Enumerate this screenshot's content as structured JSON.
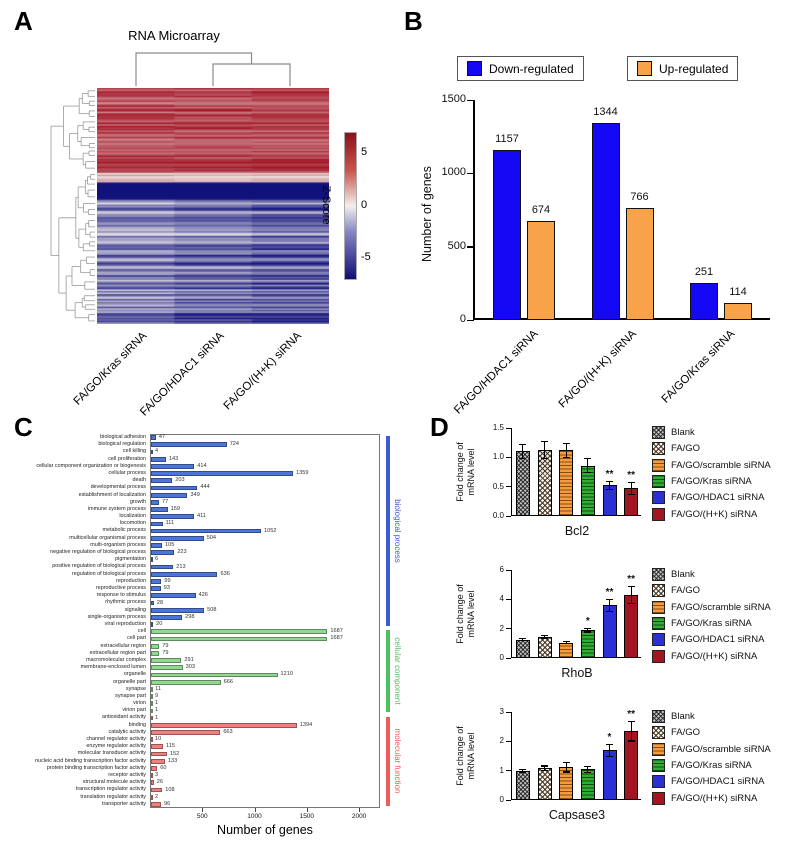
{
  "figure": {
    "panel_labels": {
      "a": "A",
      "b": "B",
      "c": "C",
      "d": "D"
    }
  },
  "panel_a": {
    "title": "RNA Microarray",
    "colorbar_title": "Z-Score",
    "colorbar_ticks": [
      "5",
      "0",
      "-5"
    ],
    "column_labels": [
      "FA/GO/Kras siRNA",
      "FA/GO/HDAC1 siRNA",
      "FA/GO/(H+K) siRNA"
    ],
    "heatmap_colors": {
      "high": "#a31525",
      "mid": "#f2efec",
      "low": "#12127c"
    }
  },
  "panel_d": {
    "ylabel_line1": "Fold change of",
    "ylabel_line2": "mRNA level",
    "legend": [
      {
        "label": "Blank",
        "pattern": "checker-gray"
      },
      {
        "label": "FA/GO",
        "pattern": "crosshatch-tan"
      },
      {
        "label": "FA/GO/scramble siRNA",
        "pattern": "hlines-orange"
      },
      {
        "label": "FA/GO/Kras siRNA",
        "pattern": "hlines-green"
      },
      {
        "label": "FA/GO/HDAC1 siRNA",
        "pattern": "solid-blue"
      },
      {
        "label": "FA/GO/(H+K) siRNA",
        "pattern": "solid-darkred"
      }
    ]
  },
  "chart_data": [
    {
      "id": "gene-counts",
      "type": "bar",
      "title": "",
      "ylabel": "Number of genes",
      "ylim": [
        0,
        1500
      ],
      "yticks": [
        0,
        500,
        1000,
        1500
      ],
      "categories": [
        "FA/GO/HDAC1 siRNA",
        "FA/GO/(H+K) siRNA",
        "FA/GO/Kras siRNA"
      ],
      "series": [
        {
          "name": "Down-regulated",
          "color": "#1508f5",
          "values": [
            1157,
            1344,
            251
          ]
        },
        {
          "name": "Up-regulated",
          "color": "#f8a24a",
          "values": [
            674,
            766,
            114
          ]
        }
      ],
      "legend_position": "top"
    },
    {
      "id": "go-classification",
      "type": "bar-horizontal",
      "xlabel": "Number of genes",
      "xlim": [
        0,
        2200
      ],
      "xticks": [
        500,
        1000,
        1500,
        2000
      ],
      "groups": [
        {
          "name": "biological process",
          "color": "#4d74d8",
          "bracket_color": "#3b5bd7",
          "items": [
            [
              "biological adhesion",
              47
            ],
            [
              "biological regulation",
              724
            ],
            [
              "cell killing",
              4
            ],
            [
              "cell proliferation",
              143
            ],
            [
              "cellular component organization or biogenesis",
              414
            ],
            [
              "cellular process",
              1359
            ],
            [
              "death",
              203
            ],
            [
              "developmental process",
              444
            ],
            [
              "establishment of localization",
              349
            ],
            [
              "growth",
              77
            ],
            [
              "immune system process",
              159
            ],
            [
              "localization",
              411
            ],
            [
              "locomotion",
              111
            ],
            [
              "metabolic process",
              1052
            ],
            [
              "multicellular organismal process",
              504
            ],
            [
              "multi-organism process",
              105
            ],
            [
              "negative regulation of biological process",
              223
            ],
            [
              "pigmentation",
              6
            ],
            [
              "positive regulation of biological process",
              213
            ],
            [
              "regulation of biological process",
              636
            ],
            [
              "reproduction",
              99
            ],
            [
              "reproductive process",
              93
            ],
            [
              "response to stimulus",
              426
            ],
            [
              "rhythmic process",
              28
            ],
            [
              "signaling",
              508
            ],
            [
              "single-organism process",
              298
            ],
            [
              "viral reproduction",
              20
            ]
          ]
        },
        {
          "name": "cellular component",
          "color": "#93d793",
          "bracket_color": "#4fbf5f",
          "items": [
            [
              "cell",
              1687
            ],
            [
              "cell part",
              1687
            ],
            [
              "extracellular region",
              79
            ],
            [
              "extracellular region part",
              79
            ],
            [
              "macromolecular complex",
              291
            ],
            [
              "membrane-enclosed lumen",
              303
            ],
            [
              "organelle",
              1210
            ],
            [
              "organelle part",
              666
            ],
            [
              "synapse",
              11
            ],
            [
              "synapse part",
              9
            ],
            [
              "virion",
              1
            ],
            [
              "virion part",
              1
            ]
          ]
        },
        {
          "name": "molecular function",
          "color": "#ef8080",
          "bracket_color": "#ee5b5b",
          "items": [
            [
              "antioxidant activity",
              1
            ],
            [
              "binding",
              1394
            ],
            [
              "catalytic activity",
              663
            ],
            [
              "channel regulator activity",
              10
            ],
            [
              "enzyme regulator activity",
              115
            ],
            [
              "molecular transducer activity",
              152
            ],
            [
              "nucleic acid binding transcription factor activity",
              133
            ],
            [
              "protein binding transcription factor activity",
              60
            ],
            [
              "receptor activity",
              3
            ],
            [
              "structural molecule activity",
              26
            ],
            [
              "transcription regulator activity",
              108
            ],
            [
              "translation regulator activity",
              2
            ],
            [
              "transporter activity",
              96
            ]
          ]
        }
      ]
    },
    {
      "id": "bcl2",
      "type": "bar",
      "title": "Bcl2",
      "ylabel": "Fold change of mRNA level",
      "ylim": [
        0,
        1.5
      ],
      "yticks": [
        0,
        0.5,
        1,
        1.5
      ],
      "ytick_labels": [
        "0.0",
        "0.5",
        "1.0",
        "1.5"
      ],
      "categories": [
        "Blank",
        "FA/GO",
        "FA/GO/scramble siRNA",
        "FA/GO/Kras siRNA",
        "FA/GO/HDAC1 siRNA",
        "FA/GO/(H+K) siRNA"
      ],
      "values": [
        1.1,
        1.13,
        1.12,
        0.86,
        0.52,
        0.47
      ],
      "errors": [
        0.13,
        0.15,
        0.13,
        0.13,
        0.08,
        0.11
      ],
      "significance": [
        "",
        "",
        "",
        "",
        "**",
        "**"
      ]
    },
    {
      "id": "rhob",
      "type": "bar",
      "title": "RhoB",
      "ylabel": "Fold change of mRNA level",
      "ylim": [
        0,
        6
      ],
      "yticks": [
        0,
        2,
        4,
        6
      ],
      "ytick_labels": [
        "0",
        "2",
        "4",
        "6"
      ],
      "categories": [
        "Blank",
        "FA/GO",
        "FA/GO/scramble siRNA",
        "FA/GO/Kras siRNA",
        "FA/GO/HDAC1 siRNA",
        "FA/GO/(H+K) siRNA"
      ],
      "values": [
        1.25,
        1.45,
        1.05,
        1.9,
        3.6,
        4.3
      ],
      "errors": [
        0.1,
        0.15,
        0.1,
        0.15,
        0.45,
        0.6
      ],
      "significance": [
        "",
        "",
        "",
        "*",
        "**",
        "**"
      ]
    },
    {
      "id": "capsase3",
      "type": "bar",
      "title": "Capsase3",
      "ylabel": "Fold change of mRNA level",
      "ylim": [
        0,
        3
      ],
      "yticks": [
        0,
        1,
        2,
        3
      ],
      "ytick_labels": [
        "0",
        "1",
        "2",
        "3"
      ],
      "categories": [
        "Blank",
        "FA/GO",
        "FA/GO/scramble siRNA",
        "FA/GO/Kras siRNA",
        "FA/GO/HDAC1 siRNA",
        "FA/GO/(H+K) siRNA"
      ],
      "values": [
        1.0,
        1.08,
        1.12,
        1.05,
        1.7,
        2.35
      ],
      "errors": [
        0.06,
        0.1,
        0.18,
        0.12,
        0.22,
        0.35
      ],
      "significance": [
        "",
        "",
        "",
        "",
        "*",
        "**"
      ]
    }
  ]
}
